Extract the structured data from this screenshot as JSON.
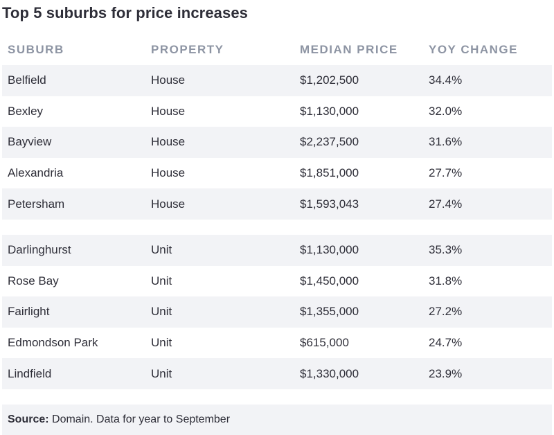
{
  "title": "Top 5 suburbs for price increases",
  "headers": [
    "SUBURB",
    "PROPERTY",
    "MEDIAN PRICE",
    "YOY CHANGE"
  ],
  "houses": [
    {
      "suburb": "Belfield",
      "property": "House",
      "price": "$1,202,500",
      "change": "34.4%"
    },
    {
      "suburb": "Bexley",
      "property": "House",
      "price": "$1,130,000",
      "change": "32.0%"
    },
    {
      "suburb": "Bayview",
      "property": "House",
      "price": "$2,237,500",
      "change": "31.6%"
    },
    {
      "suburb": "Alexandria",
      "property": "House",
      "price": "$1,851,000",
      "change": "27.7%"
    },
    {
      "suburb": "Petersham",
      "property": "House",
      "price": "$1,593,043",
      "change": "27.4%"
    }
  ],
  "units": [
    {
      "suburb": "Darlinghurst",
      "property": "Unit",
      "price": "$1,130,000",
      "change": "35.3%"
    },
    {
      "suburb": "Rose Bay",
      "property": "Unit",
      "price": "$1,450,000",
      "change": "31.8%"
    },
    {
      "suburb": "Fairlight",
      "property": "Unit",
      "price": "$1,355,000",
      "change": "27.2%"
    },
    {
      "suburb": "Edmondson Park",
      "property": "Unit",
      "price": "$615,000",
      "change": "24.7%"
    },
    {
      "suburb": "Lindfield",
      "property": "Unit",
      "price": "$1,330,000",
      "change": "23.9%"
    }
  ],
  "source": {
    "label": "Source:",
    "text": " Domain. Data for year to September"
  }
}
